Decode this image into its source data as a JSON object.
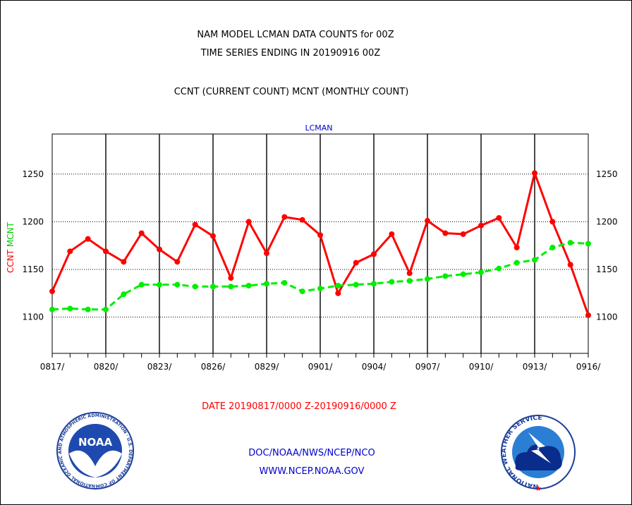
{
  "header": {
    "title_line1": "NAM MODEL LCMAN DATA COUNTS for 00Z",
    "title_line2": "TIME SERIES ENDING IN 20190916 00Z",
    "subtitle": "CCNT (CURRENT COUNT) MCNT (MONTHLY COUNT)"
  },
  "footer": {
    "date_range": "DATE 20190817/0000 Z-20190916/0000 Z",
    "agency": "DOC/NOAA/NWS/NCEP/NCO",
    "website": "WWW.NCEP.NOAA.GOV"
  },
  "logos": {
    "noaa_text": "NOAA",
    "noaa_ring": "NATIONAL OCEANIC AND ATMOSPHERIC ADMINISTRATION · U.S. DEPARTMENT OF COMMERCE ·",
    "nws_ring": "NATIONAL WEATHER SERVICE"
  },
  "colors": {
    "ccnt": "#ff0000",
    "mcnt": "#00ee00",
    "text_blue": "#0000cc",
    "text_red": "#ff0000",
    "axis": "#000000"
  },
  "chart_data": {
    "type": "line",
    "title": "LCMAN",
    "ylabel_parts": [
      "CCNT",
      "MCNT"
    ],
    "ylim": [
      1062,
      1292
    ],
    "yticks": [
      1100,
      1150,
      1200,
      1250
    ],
    "xlim": [
      0,
      30
    ],
    "xticks": [
      {
        "x": 0,
        "label": "0817/"
      },
      {
        "x": 3,
        "label": "0820/"
      },
      {
        "x": 6,
        "label": "0823/"
      },
      {
        "x": 9,
        "label": "0826/"
      },
      {
        "x": 12,
        "label": "0829/"
      },
      {
        "x": 15,
        "label": "0901/"
      },
      {
        "x": 18,
        "label": "0904/"
      },
      {
        "x": 21,
        "label": "0907/"
      },
      {
        "x": 24,
        "label": "0910/"
      },
      {
        "x": 27,
        "label": "0913/"
      },
      {
        "x": 30,
        "label": "0916/"
      }
    ],
    "grid": true,
    "dates": [
      "0817",
      "0818",
      "0819",
      "0820",
      "0821",
      "0822",
      "0823",
      "0824",
      "0825",
      "0826",
      "0827",
      "0828",
      "0829",
      "0830",
      "0831",
      "0901",
      "0902",
      "0903",
      "0904",
      "0905",
      "0906",
      "0907",
      "0908",
      "0909",
      "0910",
      "0911",
      "0912",
      "0913",
      "0914",
      "0915",
      "0916"
    ],
    "series": [
      {
        "name": "CCNT",
        "color": "#ff0000",
        "style": "solid",
        "values": [
          1127,
          1169,
          1182,
          1169,
          1158,
          1188,
          1171,
          1158,
          1197,
          1185,
          1141,
          1200,
          1167,
          1205,
          1202,
          1186,
          1125,
          1157,
          1166,
          1187,
          1146,
          1201,
          1188,
          1187,
          1196,
          1204,
          1173,
          1251,
          1200,
          1155,
          1102
        ]
      },
      {
        "name": "MCNT",
        "color": "#00ee00",
        "style": "dashed",
        "values": [
          1108,
          1109,
          1108,
          1108,
          1124,
          1134,
          1134,
          1134,
          1132,
          1132,
          1132,
          1133,
          1135,
          1136,
          1127,
          1130,
          1133,
          1134,
          1135,
          1137,
          1138,
          1140,
          1143,
          1145,
          1147,
          1151,
          1157,
          1160,
          1173,
          1178,
          1177
        ]
      }
    ]
  }
}
